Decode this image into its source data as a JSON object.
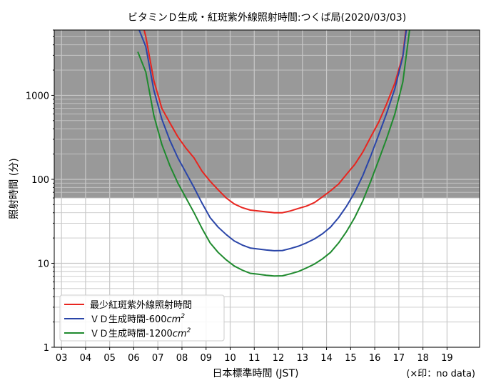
{
  "chart_data": {
    "type": "line",
    "title": "ビタミンＤ生成・紅斑紫外線照射時間:つくば局(2020/03/03)",
    "xlabel": "日本標準時間 (JST)",
    "ylabel": "照射時間 (分)",
    "note": "(×印：no data)",
    "x_ticks": [
      "03",
      "04",
      "05",
      "06",
      "07",
      "08",
      "09",
      "10",
      "11",
      "12",
      "13",
      "14",
      "15",
      "16",
      "17",
      "18",
      "19"
    ],
    "y_ticks": [
      "1",
      "10",
      "100",
      "1000"
    ],
    "y_scale": "log",
    "xlim": [
      2.7,
      20.35
    ],
    "ylim": [
      1,
      6000
    ],
    "grid": true,
    "shaded_region": {
      "from": 60,
      "to": 6000,
      "color": "#999999"
    },
    "legend_position": "bottom-left",
    "x": [
      "06:10",
      "06:30",
      "06:50",
      "07:10",
      "07:30",
      "07:50",
      "08:10",
      "08:30",
      "08:50",
      "09:10",
      "09:30",
      "09:50",
      "10:10",
      "10:30",
      "10:50",
      "11:10",
      "11:30",
      "11:50",
      "12:10",
      "12:30",
      "12:50",
      "13:10",
      "13:30",
      "13:50",
      "14:10",
      "14:30",
      "14:50",
      "15:10",
      "15:30",
      "15:50",
      "16:10",
      "16:30",
      "16:50",
      "17:10",
      "17:30"
    ],
    "series": [
      {
        "name": "最少紅斑紫外線照射時間",
        "color": "#e8251f",
        "values": [
          12000,
          5000,
          1500,
          700,
          470,
          320,
          235,
          180,
          125,
          95,
          75,
          60,
          51,
          46,
          43,
          42,
          41,
          40,
          40,
          42,
          45,
          48,
          53,
          62,
          73,
          88,
          115,
          150,
          210,
          320,
          480,
          800,
          1400,
          3000,
          20000
        ]
      },
      {
        "name": "ＶＤ生成時間-600",
        "unit": "cm",
        "unit_exp": "2",
        "color": "#2a45a8",
        "values": [
          6600,
          3800,
          1150,
          520,
          290,
          180,
          120,
          80,
          52,
          35,
          27,
          22,
          18.5,
          16.5,
          15.2,
          14.8,
          14.4,
          14.1,
          14.2,
          15,
          16,
          17.5,
          19.5,
          22.5,
          27,
          35,
          48,
          70,
          110,
          190,
          340,
          620,
          1200,
          2900,
          16000
        ]
      },
      {
        "name": "ＶＤ生成時間-1200",
        "unit": "cm",
        "unit_exp": "2",
        "color": "#1f8a2e",
        "values": [
          3300,
          1900,
          575,
          260,
          145,
          90,
          60,
          40,
          26,
          17.5,
          13.5,
          11,
          9.3,
          8.3,
          7.6,
          7.4,
          7.2,
          7.05,
          7.1,
          7.5,
          8,
          8.8,
          9.8,
          11.3,
          13.5,
          17.5,
          24,
          35,
          55,
          95,
          170,
          310,
          600,
          1450,
          8000
        ]
      }
    ]
  }
}
